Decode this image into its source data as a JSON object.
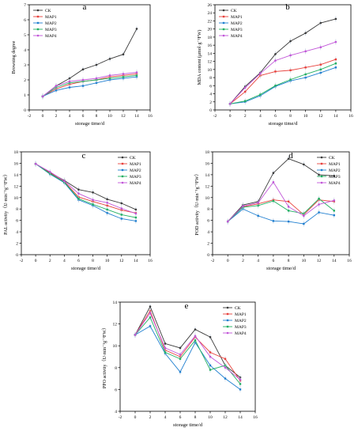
{
  "colors": {
    "CK": "#3a3a3a",
    "MAP1": "#e8413c",
    "MAP2": "#1f7fd0",
    "MAP3": "#21b062",
    "MAP4": "#c155d8",
    "error_bar": "#b8c8da"
  },
  "chart_data": [
    {
      "panel": "a",
      "type": "line",
      "xlabel": "storage time/d",
      "ylabel": "Browning degree",
      "xlim": [
        -2,
        16
      ],
      "ylim": [
        0,
        7
      ],
      "xticks": [
        "-2",
        "0",
        "2",
        "4",
        "6",
        "8",
        "10",
        "12",
        "14",
        "16"
      ],
      "yticks": [
        "0",
        "1",
        "2",
        "3",
        "4",
        "5",
        "6",
        "7"
      ],
      "legend_position": "top-left",
      "x": [
        0,
        2,
        4,
        6,
        8,
        10,
        12,
        14
      ],
      "series": [
        {
          "name": "CK",
          "values": [
            0.9,
            1.6,
            2.1,
            2.7,
            3.0,
            3.4,
            3.7,
            5.4
          ]
        },
        {
          "name": "MAP1",
          "values": [
            0.9,
            1.4,
            1.7,
            1.9,
            2.0,
            2.2,
            2.3,
            2.4
          ]
        },
        {
          "name": "MAP2",
          "values": [
            0.9,
            1.3,
            1.5,
            1.6,
            1.8,
            2.0,
            2.1,
            2.2
          ]
        },
        {
          "name": "MAP3",
          "values": [
            0.9,
            1.5,
            1.8,
            1.9,
            2.0,
            2.1,
            2.2,
            2.3
          ]
        },
        {
          "name": "MAP4",
          "values": [
            0.9,
            1.6,
            1.9,
            2.0,
            2.1,
            2.3,
            2.4,
            2.5
          ]
        }
      ]
    },
    {
      "panel": "b",
      "type": "line",
      "xlabel": "storage time/d",
      "ylabel": "MDA content (μmol·g⁻¹FW)",
      "xlim": [
        -2,
        16
      ],
      "ylim": [
        0,
        26
      ],
      "xticks": [
        "-2",
        "0",
        "2",
        "4",
        "6",
        "8",
        "10",
        "12",
        "14",
        "16"
      ],
      "yticks": [
        "0",
        "2",
        "4",
        "6",
        "8",
        "10",
        "12",
        "14",
        "16",
        "18",
        "20",
        "22",
        "24",
        "26"
      ],
      "legend_position": "top-left",
      "x": [
        0,
        2,
        4,
        6,
        8,
        10,
        12,
        14
      ],
      "series": [
        {
          "name": "CK",
          "values": [
            1.5,
            5.8,
            9.2,
            13.8,
            17.0,
            19.0,
            21.5,
            22.5
          ]
        },
        {
          "name": "MAP1",
          "values": [
            1.5,
            4.5,
            8.5,
            9.5,
            9.8,
            10.5,
            11.2,
            12.5
          ]
        },
        {
          "name": "MAP2",
          "values": [
            1.5,
            2.0,
            3.5,
            5.8,
            7.2,
            8.0,
            9.2,
            10.5
          ]
        },
        {
          "name": "MAP3",
          "values": [
            1.5,
            2.2,
            3.8,
            6.0,
            7.5,
            8.8,
            10.0,
            11.5
          ]
        },
        {
          "name": "MAP4",
          "values": [
            1.5,
            5.5,
            9.0,
            12.2,
            13.5,
            14.5,
            15.5,
            16.8
          ]
        }
      ]
    },
    {
      "panel": "c",
      "type": "line",
      "xlabel": "storage time/d",
      "ylabel": "PAL activity（U·min⁻¹g⁻¹FW）",
      "xlim": [
        -2,
        16
      ],
      "ylim": [
        0,
        18
      ],
      "xticks": [
        "-2",
        "0",
        "2",
        "4",
        "6",
        "8",
        "10",
        "12",
        "14",
        "16"
      ],
      "yticks": [
        "0",
        "2",
        "4",
        "6",
        "8",
        "10",
        "12",
        "14",
        "16",
        "18"
      ],
      "legend_position": "top-right",
      "x": [
        0,
        2,
        4,
        6,
        8,
        10,
        12,
        14
      ],
      "series": [
        {
          "name": "CK",
          "values": [
            15.9,
            14.4,
            13.0,
            11.4,
            10.9,
            9.7,
            9.0,
            7.9
          ]
        },
        {
          "name": "MAP1",
          "values": [
            15.9,
            14.3,
            12.8,
            10.1,
            9.3,
            8.6,
            7.8,
            7.3
          ]
        },
        {
          "name": "MAP2",
          "values": [
            15.9,
            14.1,
            12.6,
            9.6,
            8.6,
            7.3,
            6.3,
            5.9
          ]
        },
        {
          "name": "MAP3",
          "values": [
            15.9,
            14.2,
            12.7,
            9.8,
            8.8,
            7.9,
            7.0,
            6.5
          ]
        },
        {
          "name": "MAP4",
          "values": [
            15.9,
            14.5,
            12.9,
            10.7,
            9.6,
            9.1,
            8.1,
            7.2
          ]
        }
      ]
    },
    {
      "panel": "d",
      "type": "line",
      "xlabel": "storage time/d",
      "ylabel": "POD activity（U·min⁻¹g⁻¹FW）",
      "xlim": [
        -2,
        16
      ],
      "ylim": [
        0,
        18
      ],
      "xticks": [
        "-2",
        "0",
        "2",
        "4",
        "6",
        "8",
        "10",
        "12",
        "14",
        "16"
      ],
      "yticks": [
        "0",
        "2",
        "4",
        "6",
        "8",
        "10",
        "12",
        "14",
        "16",
        "18"
      ],
      "legend_position": "top-right",
      "x": [
        0,
        2,
        4,
        6,
        8,
        10,
        12,
        14
      ],
      "series": [
        {
          "name": "CK",
          "values": [
            5.8,
            8.7,
            9.3,
            14.3,
            16.8,
            15.8,
            14.0,
            13.8
          ]
        },
        {
          "name": "MAP1",
          "values": [
            5.8,
            8.4,
            8.9,
            9.6,
            9.3,
            7.0,
            9.6,
            9.3
          ]
        },
        {
          "name": "MAP2",
          "values": [
            5.8,
            8.0,
            6.8,
            5.9,
            5.8,
            5.4,
            7.4,
            6.9
          ]
        },
        {
          "name": "MAP3",
          "values": [
            5.8,
            8.3,
            8.6,
            9.4,
            7.7,
            7.2,
            9.8,
            7.7
          ]
        },
        {
          "name": "MAP4",
          "values": [
            5.8,
            8.5,
            9.1,
            12.7,
            8.4,
            6.8,
            8.8,
            9.5
          ]
        }
      ]
    },
    {
      "panel": "e",
      "type": "line",
      "xlabel": "storage time/d",
      "ylabel": "PPO activity（U·min⁻¹g⁻¹FW）",
      "xlim": [
        -2,
        16
      ],
      "ylim": [
        4,
        14
      ],
      "xticks": [
        "-2",
        "0",
        "2",
        "4",
        "6",
        "8",
        "10",
        "12",
        "14",
        "16"
      ],
      "yticks": [
        "4",
        "6",
        "8",
        "10",
        "12",
        "14"
      ],
      "legend_position": "top-right",
      "x": [
        0,
        2,
        4,
        6,
        8,
        10,
        12,
        14
      ],
      "series": [
        {
          "name": "CK",
          "values": [
            11.0,
            13.6,
            10.2,
            9.8,
            11.5,
            10.8,
            8.2,
            7.1
          ]
        },
        {
          "name": "MAP1",
          "values": [
            11.0,
            13.2,
            9.6,
            9.0,
            10.8,
            9.4,
            8.8,
            6.8
          ]
        },
        {
          "name": "MAP2",
          "values": [
            11.0,
            11.8,
            9.3,
            7.6,
            10.3,
            8.2,
            7.0,
            6.0
          ]
        },
        {
          "name": "MAP3",
          "values": [
            11.0,
            12.6,
            9.4,
            8.8,
            10.5,
            7.8,
            8.2,
            6.5
          ]
        },
        {
          "name": "MAP4",
          "values": [
            11.0,
            13.0,
            9.8,
            9.2,
            10.9,
            9.0,
            8.0,
            6.9
          ]
        }
      ]
    }
  ]
}
